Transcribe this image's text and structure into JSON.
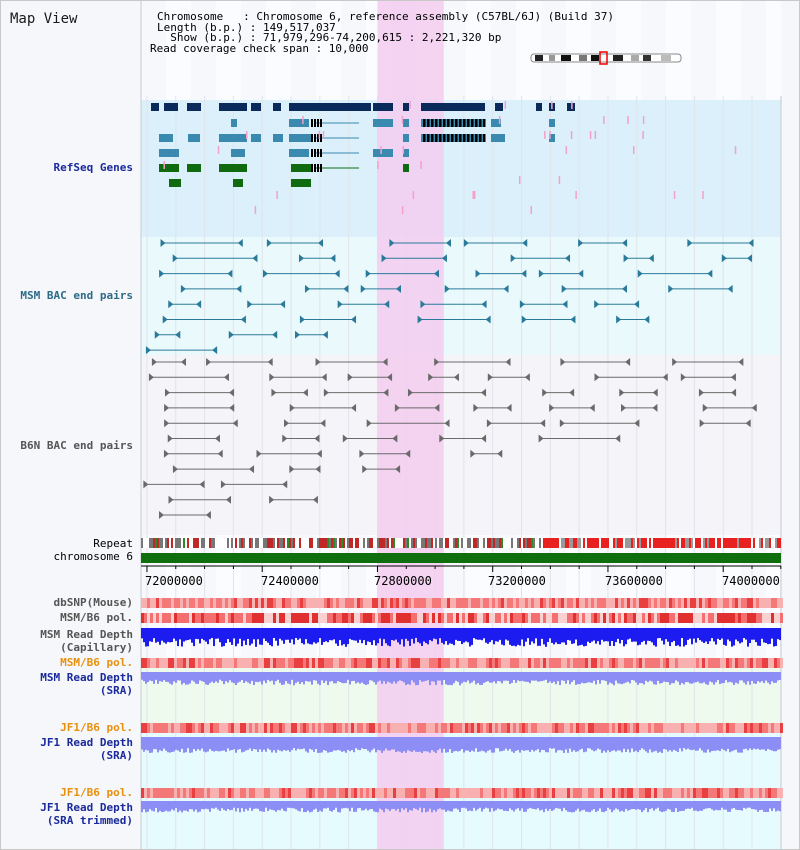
{
  "title": "Map View",
  "header": {
    "chromosome_line": "Chromosome   : Chromosome 6, reference assembly (C57BL/6J) (Build 37)",
    "length_line": "Length (b.p.) : 149,517,037",
    "show_line": "  Show (b.p.) : 71,979,296-74,200,615 : 2,221,320 bp",
    "coverage_line": "Read coverage check span : 10,000"
  },
  "tracks": {
    "refseq": "RefSeq Genes",
    "msm_bac": "MSM BAC end pairs",
    "b6n_bac": "B6N BAC end pairs",
    "repeat": "Repeat",
    "chromosome": "chromosome 6",
    "dbsnp": "dbSNP(Mouse)",
    "msm_pol_1": "MSM/B6 pol.",
    "msm_depth_cap_1": "MSM Read Depth",
    "msm_depth_cap_2": "(Capillary)",
    "msm_pol_2": "MSM/B6 pol.",
    "msm_depth_sra_1": "MSM Read Depth",
    "msm_depth_sra_2": "(SRA)",
    "jf1_pol_1": "JF1/B6 pol.",
    "jf1_depth_1": "JF1 Read Depth",
    "jf1_depth_2": "(SRA)",
    "jf1_pol_2": "JF1/B6 pol.",
    "jf1_trim_1": "JF1 Read Depth",
    "jf1_trim_2": "(SRA trimmed)"
  },
  "axis": {
    "ticks": [
      "72000000",
      "72400000",
      "72800000",
      "73200000",
      "73600000",
      "74000000"
    ],
    "range": [
      71979296,
      74200615
    ]
  },
  "highlight": {
    "start": 72800000,
    "end": 73030000
  },
  "colors": {
    "refseq_dark": "#0b2a5c",
    "refseq_mid": "#3a8ab0",
    "refseq_green": "#106b10",
    "msm_pair": "#2b7a9a",
    "b6n_pair": "#6a6a6a",
    "highlight": "#f3cdf0",
    "chromosome_bar": "#0f6f0f",
    "depth_capillary": "#1c1cf0",
    "depth_sra": "#8d8df6",
    "pol": "#f06060"
  }
}
